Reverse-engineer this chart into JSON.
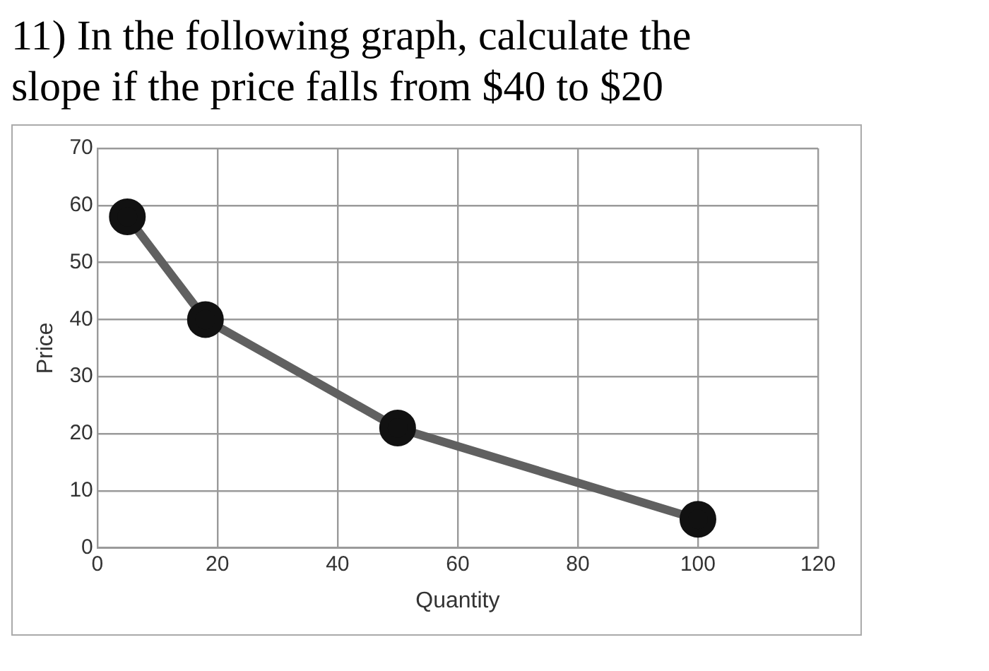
{
  "chart_data": {
    "type": "line",
    "title": "11) In the following graph, calculate the slope if the price falls from $40 to $20",
    "xlabel": "Quantity",
    "ylabel": "Price",
    "series": [
      {
        "x": [
          5,
          18,
          50,
          100
        ],
        "values": [
          58,
          40,
          21,
          5
        ],
        "color": "#606060"
      }
    ],
    "xlim": [
      0,
      120
    ],
    "xticks": [
      0,
      20,
      40,
      60,
      80,
      100,
      120
    ],
    "ylim": [
      0,
      70
    ],
    "yticks": [
      0,
      10,
      20,
      30,
      40,
      50,
      60,
      70
    ],
    "grid": true,
    "legend": false,
    "marker": "circle",
    "line_style": "solid"
  }
}
